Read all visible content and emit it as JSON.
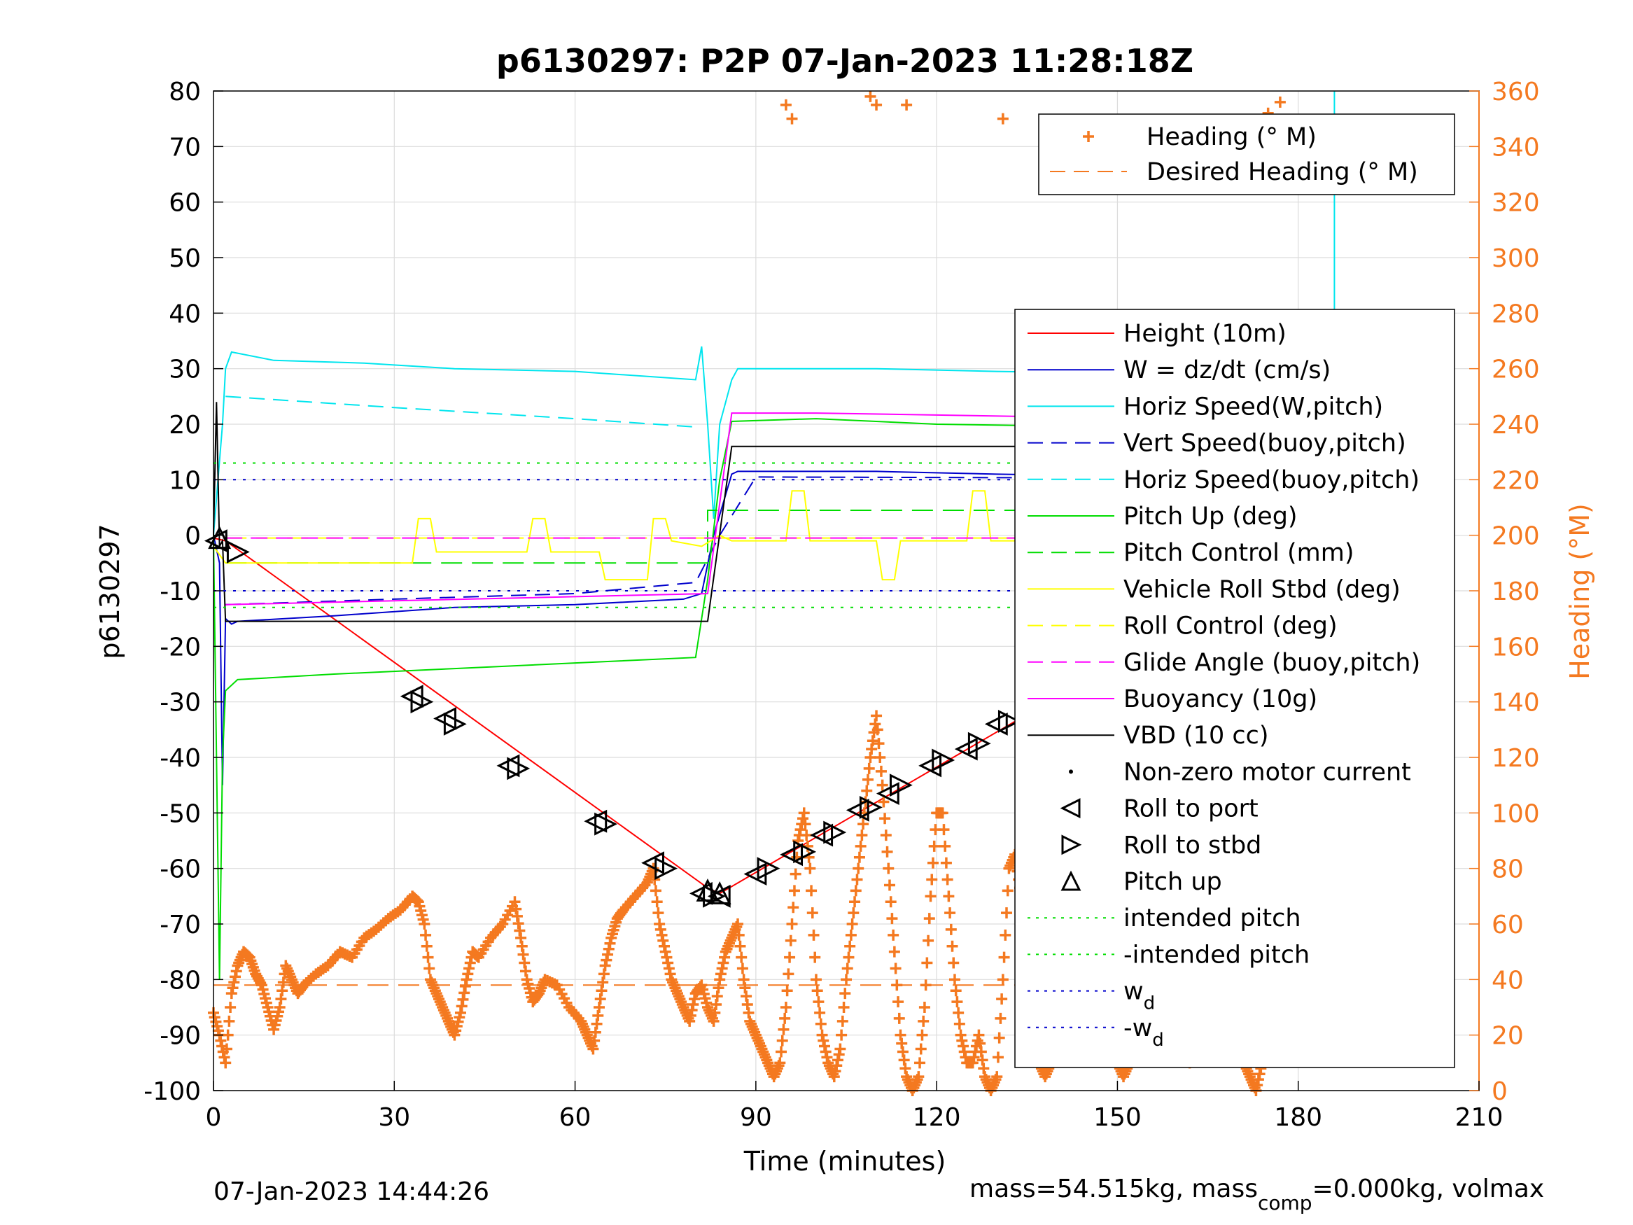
{
  "chart_data": {
    "type": "line",
    "title": "p6130297: P2P 07-Jan-2023 11:28:18Z",
    "xlabel": "Time (minutes)",
    "ylabel": "p6130297",
    "ylabel_right": "Heading (°M)",
    "xlim": [
      0,
      210
    ],
    "ylim": [
      -100,
      80
    ],
    "ylim_right": [
      0,
      360
    ],
    "x_ticks": [
      "0",
      "30",
      "60",
      "90",
      "120",
      "150",
      "180",
      "210"
    ],
    "y_ticks": [
      "80",
      "70",
      "60",
      "50",
      "40",
      "30",
      "20",
      "10",
      "0",
      "-10",
      "-20",
      "-30",
      "-40",
      "-50",
      "-60",
      "-70",
      "-80",
      "-90",
      "-100"
    ],
    "y_right_ticks": [
      "360",
      "340",
      "320",
      "300",
      "280",
      "260",
      "240",
      "220",
      "200",
      "180",
      "160",
      "140",
      "120",
      "100",
      "80",
      "60",
      "40",
      "20",
      "0"
    ],
    "grid": true,
    "legend_right_axis": [
      {
        "name": "Heading (° M)",
        "color": "#f47920",
        "style": "plus"
      },
      {
        "name": "Desired Heading (° M)",
        "color": "#f47920",
        "style": "dashed"
      }
    ],
    "legend_left_axis": [
      {
        "name": "Height (10m)",
        "color": "#ff0000",
        "style": "solid"
      },
      {
        "name": "W = dz/dt (cm/s)",
        "color": "#0000cc",
        "style": "solid"
      },
      {
        "name": "Horiz Speed(W,pitch)",
        "color": "#00e5ee",
        "style": "solid"
      },
      {
        "name": "Vert Speed(buoy,pitch)",
        "color": "#0000cc",
        "style": "dashed"
      },
      {
        "name": "Horiz Speed(buoy,pitch)",
        "color": "#00e5ee",
        "style": "dashed"
      },
      {
        "name": "Pitch Up (deg)",
        "color": "#00dd00",
        "style": "solid"
      },
      {
        "name": "Pitch Control (mm)",
        "color": "#00dd00",
        "style": "dashed"
      },
      {
        "name": "Vehicle Roll Stbd (deg)",
        "color": "#ffff00",
        "style": "solid"
      },
      {
        "name": "Roll Control (deg)",
        "color": "#ffff00",
        "style": "dashed"
      },
      {
        "name": "Glide Angle (buoy,pitch)",
        "color": "#ff00ff",
        "style": "dashed"
      },
      {
        "name": "Buoyancy (10g)",
        "color": "#ff00ff",
        "style": "solid"
      },
      {
        "name": "VBD (10 cc)",
        "color": "#000000",
        "style": "solid"
      },
      {
        "name": "Non-zero motor current",
        "color": "#000000",
        "style": "dot"
      },
      {
        "name": "Roll to port",
        "color": "#000000",
        "style": "tri-left"
      },
      {
        "name": "Roll to stbd",
        "color": "#000000",
        "style": "tri-right"
      },
      {
        "name": "Pitch up",
        "color": "#000000",
        "style": "tri-up"
      },
      {
        "name": "intended pitch",
        "color": "#00dd00",
        "style": "dotted"
      },
      {
        "name": "-intended pitch",
        "color": "#00dd00",
        "style": "dotted"
      },
      {
        "name": "w_d",
        "color": "#0000cc",
        "style": "dotted"
      },
      {
        "name": "-w_d",
        "color": "#0000cc",
        "style": "dotted"
      }
    ],
    "series": [
      {
        "name": "Height (10m)",
        "color": "#ff0000",
        "axis": "left",
        "x": [
          0,
          2,
          82,
          84,
          186
        ],
        "y": [
          -0.5,
          -1,
          -63.5,
          -64.5,
          0
        ]
      },
      {
        "name": "W = dz/dt (cm/s)",
        "color": "#0000cc",
        "axis": "left",
        "x": [
          0,
          1,
          1.5,
          2,
          3,
          4,
          20,
          40,
          60,
          78,
          81,
          83,
          86,
          87,
          110,
          130,
          160,
          180,
          186
        ],
        "y": [
          0,
          -5,
          -45,
          -15,
          -16,
          -15.5,
          -14.5,
          -13,
          -12.5,
          -11.5,
          -10.5,
          0,
          11,
          11.5,
          11.5,
          11,
          10.5,
          10,
          10
        ]
      },
      {
        "name": "Horiz Speed(W,pitch)",
        "color": "#00e5ee",
        "axis": "left",
        "x": [
          0,
          1.5,
          2,
          3,
          10,
          25,
          40,
          60,
          80,
          81,
          82,
          83,
          84,
          86,
          87,
          110,
          130,
          160,
          180,
          185,
          186,
          186
        ],
        "y": [
          0,
          20,
          30,
          33,
          31.5,
          31,
          30,
          29.5,
          28,
          34,
          20,
          3,
          20,
          28,
          30,
          30,
          29.5,
          29,
          31,
          31.5,
          30,
          80
        ]
      },
      {
        "name": "Vert Speed(buoy,pitch)",
        "color": "#0000cc",
        "axis": "left",
        "dash": "22,12",
        "x": [
          2,
          30,
          60,
          80,
          84,
          90,
          186
        ],
        "y": [
          -12.5,
          -11.5,
          -10.5,
          -8.5,
          0,
          10.5,
          10.2
        ]
      },
      {
        "name": "Horiz Speed(buoy,pitch)",
        "color": "#00e5ee",
        "axis": "left",
        "dash": "22,12",
        "x": [
          2,
          30,
          60,
          80
        ],
        "y": [
          25,
          23,
          21,
          19.5
        ]
      },
      {
        "name": "Pitch Up (deg)",
        "color": "#00dd00",
        "axis": "left",
        "x": [
          0,
          1,
          1.5,
          2,
          4,
          20,
          40,
          60,
          80,
          81,
          82,
          84,
          86,
          100,
          120,
          150,
          186
        ],
        "y": [
          0,
          -80,
          -40,
          -28,
          -26,
          -25,
          -24,
          -23,
          -22,
          -15,
          -8,
          10,
          20.5,
          21,
          20,
          19.5,
          19
        ]
      },
      {
        "name": "Pitch Control (mm)",
        "color": "#00dd00",
        "axis": "left",
        "dash": "30,14",
        "x": [
          2,
          82,
          82,
          186
        ],
        "y": [
          -5,
          -5,
          4.5,
          4.5
        ]
      },
      {
        "name": "Vehicle Roll Stbd (deg)",
        "color": "#ffff00",
        "axis": "left",
        "x": [
          0,
          2,
          4,
          33,
          34,
          36,
          37,
          52,
          53,
          55,
          56,
          64,
          65,
          72,
          73,
          75,
          76,
          81,
          84,
          86,
          95,
          96,
          98,
          99,
          110,
          111,
          113,
          114,
          125,
          126,
          128,
          129,
          135,
          136,
          138,
          139,
          150,
          151,
          153,
          154,
          165,
          166,
          168,
          169,
          180,
          181,
          183,
          184,
          186
        ],
        "y": [
          -2,
          -5,
          -5,
          -5,
          3,
          3,
          -3,
          -3,
          3,
          3,
          -3,
          -3,
          -8,
          -8,
          3,
          3,
          -1,
          -2,
          0,
          -1,
          -1,
          8,
          8,
          -1,
          -1,
          -8,
          -8,
          -1,
          -1,
          8,
          8,
          -1,
          -1,
          -8,
          -8,
          -1,
          -1,
          8,
          8,
          -1,
          -1,
          -8,
          -8,
          -1,
          -1,
          8,
          8,
          -1,
          -1
        ]
      },
      {
        "name": "Roll Control (deg)",
        "color": "#ffff00",
        "axis": "left",
        "dash": "30,14",
        "x": [
          2,
          186
        ],
        "y": [
          -0.5,
          -0.5
        ]
      },
      {
        "name": "Glide Angle (buoy,pitch)",
        "color": "#ff00ff",
        "axis": "left",
        "dash": "24,12",
        "x": [
          2,
          186
        ],
        "y": [
          -0.5,
          -0.5
        ]
      },
      {
        "name": "Buoyancy (10g)",
        "color": "#ff00ff",
        "axis": "left",
        "x": [
          2,
          82,
          86,
          100,
          157,
          157,
          186
        ],
        "y": [
          -12.5,
          -10.5,
          22,
          22,
          21,
          23.5,
          23.5
        ]
      },
      {
        "name": "VBD (10 cc)",
        "color": "#000000",
        "axis": "left",
        "x": [
          0,
          0.5,
          1,
          1.5,
          2,
          82,
          86,
          186
        ],
        "y": [
          0,
          24,
          -2,
          -1,
          -15.5,
          -15.5,
          16,
          16
        ]
      },
      {
        "name": "intended pitch",
        "color": "#00dd00",
        "axis": "left",
        "dash": "4,10",
        "x": [
          0,
          186
        ],
        "y": [
          13,
          13
        ]
      },
      {
        "name": "-intended pitch",
        "color": "#00dd00",
        "axis": "left",
        "dash": "4,10",
        "x": [
          0,
          186
        ],
        "y": [
          -13,
          -13
        ]
      },
      {
        "name": "w_d",
        "color": "#0000cc",
        "axis": "left",
        "dash": "4,10",
        "x": [
          0,
          186
        ],
        "y": [
          10,
          10
        ]
      },
      {
        "name": "-w_d",
        "color": "#0000cc",
        "axis": "left",
        "dash": "4,10",
        "x": [
          0,
          186
        ],
        "y": [
          -10,
          -10
        ]
      },
      {
        "name": "Desired Heading (° M)",
        "color": "#f47920",
        "axis": "right",
        "dash": "30,14",
        "x": [
          0,
          186
        ],
        "y": [
          38,
          38
        ]
      }
    ],
    "heading_series": {
      "name": "Heading (° M)",
      "color": "#f47920",
      "axis": "right",
      "x": [
        0,
        1,
        2,
        3,
        4,
        5,
        6,
        7,
        8,
        9,
        10,
        11,
        12,
        13,
        14,
        15,
        17,
        19,
        21,
        23,
        25,
        27,
        29,
        31,
        33,
        34,
        35,
        36,
        37,
        38,
        39,
        40,
        41,
        42,
        43,
        44,
        46,
        48,
        50,
        51,
        52,
        53,
        54,
        55,
        57,
        59,
        61,
        62,
        63,
        64,
        65,
        66,
        67,
        68,
        70,
        72,
        73,
        74,
        75,
        76,
        77,
        78,
        79,
        80,
        81,
        82,
        83,
        84,
        85,
        86,
        87,
        88,
        89,
        90,
        91,
        92,
        93,
        94,
        95,
        96,
        97,
        98,
        99,
        100,
        101,
        102,
        103,
        104,
        105,
        106,
        107,
        108,
        109,
        110,
        111,
        112,
        113,
        114,
        115,
        116,
        117,
        118,
        119,
        120,
        121,
        122,
        123,
        124,
        125,
        126,
        127,
        128,
        129,
        130,
        131,
        132,
        133,
        134,
        135,
        136,
        137,
        138,
        139,
        140,
        141,
        142,
        143,
        144,
        145,
        146,
        147,
        148,
        149,
        150,
        151,
        152,
        153,
        154,
        155,
        156,
        157,
        158,
        159,
        160,
        161,
        162,
        163,
        164,
        165,
        166,
        167,
        168,
        169,
        170,
        171,
        172,
        173,
        174,
        175,
        176,
        177,
        178,
        179,
        180,
        181,
        182,
        183,
        184,
        185,
        186
      ],
      "y": [
        28,
        20,
        10,
        35,
        45,
        50,
        48,
        42,
        38,
        30,
        22,
        30,
        45,
        40,
        35,
        38,
        42,
        45,
        50,
        48,
        55,
        58,
        62,
        65,
        70,
        68,
        60,
        40,
        35,
        30,
        25,
        20,
        28,
        40,
        50,
        48,
        55,
        60,
        68,
        55,
        40,
        32,
        35,
        40,
        38,
        30,
        25,
        20,
        15,
        30,
        45,
        55,
        62,
        65,
        70,
        75,
        80,
        60,
        50,
        40,
        35,
        30,
        25,
        35,
        38,
        30,
        25,
        40,
        50,
        55,
        60,
        40,
        25,
        20,
        15,
        10,
        5,
        10,
        30,
        60,
        90,
        100,
        80,
        40,
        20,
        10,
        5,
        15,
        40,
        60,
        80,
        100,
        120,
        135,
        110,
        80,
        50,
        20,
        5,
        0,
        5,
        30,
        70,
        100,
        100,
        70,
        40,
        20,
        10,
        10,
        20,
        5,
        0,
        5,
        40,
        80,
        85,
        70,
        40,
        20,
        10,
        5,
        10,
        30,
        60,
        90,
        95,
        110,
        115,
        100,
        80,
        50,
        20,
        10,
        5,
        10,
        30,
        70,
        95,
        105,
        100,
        80,
        50,
        30,
        20,
        10,
        15,
        40,
        70,
        85,
        90,
        80,
        50,
        20,
        10,
        5,
        0,
        10,
        40,
        70,
        75,
        60,
        40,
        20,
        15,
        20,
        25,
        30,
        28,
        26
      ],
      "extra_points": [
        [
          95,
          355
        ],
        [
          96,
          350
        ],
        [
          109,
          358
        ],
        [
          110,
          355
        ],
        [
          115,
          355
        ],
        [
          131,
          350
        ],
        [
          175,
          352
        ],
        [
          177,
          356
        ]
      ]
    },
    "markers": {
      "roll_to_port": [
        [
          0.5,
          -1
        ],
        [
          33,
          -29
        ],
        [
          38.5,
          -33
        ],
        [
          49,
          -41.5
        ],
        [
          63.5,
          -51.5
        ],
        [
          73,
          -59
        ],
        [
          81,
          -64.5
        ],
        [
          84,
          -65
        ],
        [
          90,
          -61
        ],
        [
          96,
          -57.5
        ],
        [
          101,
          -54
        ],
        [
          107,
          -49.5
        ],
        [
          112,
          -46.5
        ],
        [
          119,
          -41.5
        ],
        [
          125,
          -38.5
        ],
        [
          130,
          -34
        ],
        [
          136,
          -31
        ],
        [
          141,
          -27
        ],
        [
          146,
          -24
        ],
        [
          152,
          -20.5
        ],
        [
          157,
          -17.5
        ],
        [
          162,
          -14.5
        ],
        [
          167,
          -11.5
        ],
        [
          172,
          -8
        ],
        [
          177,
          -6
        ],
        [
          181,
          -3.5
        ]
      ],
      "roll_to_stbd": [
        [
          4,
          -3
        ],
        [
          34.5,
          -30
        ],
        [
          40,
          -34
        ],
        [
          50.5,
          -42
        ],
        [
          65,
          -52
        ],
        [
          75,
          -60
        ],
        [
          83,
          -65
        ],
        [
          92,
          -60
        ],
        [
          98,
          -57
        ],
        [
          103,
          -53.5
        ],
        [
          109,
          -49
        ],
        [
          114,
          -45
        ],
        [
          121,
          -40.5
        ],
        [
          127,
          -37.5
        ],
        [
          132,
          -33.5
        ],
        [
          138,
          -30
        ],
        [
          143,
          -26.5
        ],
        [
          149,
          -23
        ],
        [
          154,
          -20
        ],
        [
          159,
          -17
        ],
        [
          164,
          -14
        ],
        [
          169,
          -10.5
        ],
        [
          174,
          -7.5
        ],
        [
          179,
          -5
        ],
        [
          183,
          -2.5
        ]
      ],
      "pitch_up": [
        [
          1,
          -0.5
        ],
        [
          82,
          -64
        ],
        [
          84,
          -64.5
        ]
      ]
    }
  },
  "footer": {
    "timestamp": "07-Jan-2023 14:44:26",
    "mass_prefix": "mass=54.515kg, mass",
    "mass_sub": "comp",
    "mass_suffix": "=0.000kg, volmax"
  }
}
